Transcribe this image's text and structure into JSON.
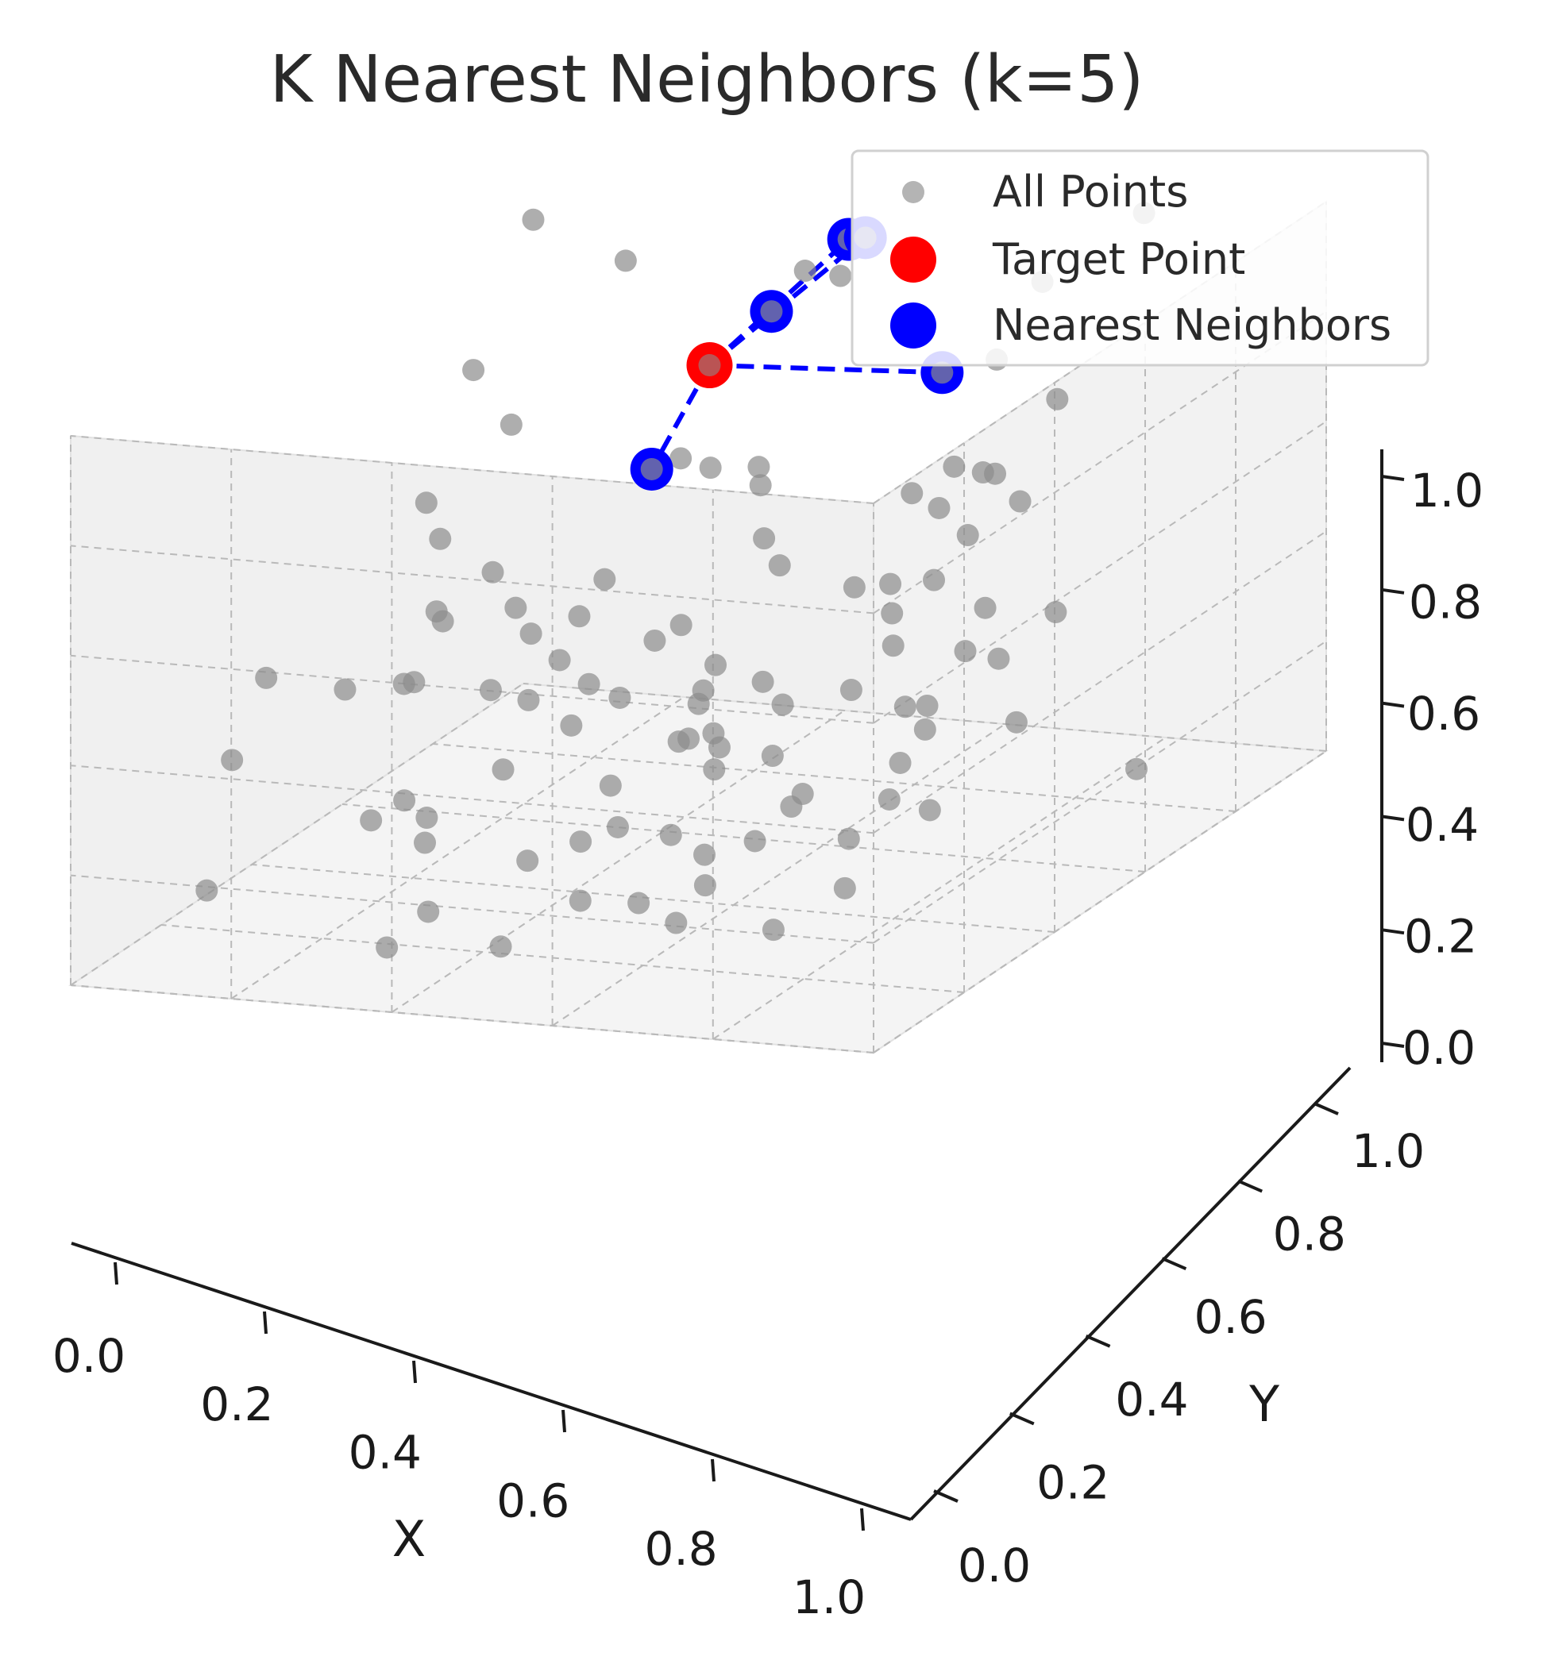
{
  "chart_data": {
    "type": "scatter",
    "projection": "3d",
    "title": "K Nearest Neighbors (k=5)",
    "xlabel": "X",
    "ylabel": "Y",
    "zlabel": "",
    "xlim": [
      0,
      1
    ],
    "ylim": [
      0,
      1
    ],
    "zlim": [
      0,
      1
    ],
    "xticks": [
      "0.0",
      "0.2",
      "0.4",
      "0.6",
      "0.8",
      "1.0"
    ],
    "yticks": [
      "0.0",
      "0.2",
      "0.4",
      "0.6",
      "0.8",
      "1.0"
    ],
    "zticks": [
      "0.0",
      "0.2",
      "0.4",
      "0.6",
      "0.8",
      "1.0"
    ],
    "grid": true,
    "legend": {
      "position": "top-right",
      "entries": [
        "All Points",
        "Target Point",
        "Nearest Neighbors"
      ]
    },
    "colors": {
      "all_points": "#8c8c8c",
      "target": "#ff0000",
      "neighbors": "#0000ff",
      "connector": "#0000ff"
    },
    "target": {
      "x": 0.52,
      "y": 0.56,
      "z": 0.88
    },
    "neighbors": [
      {
        "x": 0.42,
        "y": 0.69,
        "z": 1.05
      },
      {
        "x": 0.45,
        "y": 0.78,
        "z": 1.0
      },
      {
        "x": 0.36,
        "y": 0.79,
        "z": 0.76
      },
      {
        "x": 0.53,
        "y": 0.45,
        "z": 0.75
      },
      {
        "x": 0.55,
        "y": 0.75,
        "z": 0.87
      }
    ],
    "series": [
      {
        "name": "All Points",
        "points": [
          [
            0.07,
            0.53,
            0.89
          ],
          [
            0.17,
            0.57,
            0.72
          ],
          [
            0.22,
            0.46,
            0.35
          ],
          [
            0.28,
            0.54,
            0.41
          ],
          [
            0.1,
            0.38,
            0.51
          ],
          [
            0.3,
            0.71,
            0.64
          ],
          [
            0.34,
            0.64,
            0.46
          ],
          [
            0.43,
            0.84,
            0.93
          ],
          [
            0.21,
            0.97,
            0.97
          ],
          [
            0.23,
            0.68,
            0.86
          ],
          [
            0.54,
            0.29,
            0.37
          ],
          [
            0.63,
            0.16,
            0.77
          ],
          [
            0.48,
            0.7,
            0.98
          ],
          [
            0.19,
            0.71,
            0.99
          ],
          [
            0.34,
            0.38,
            0.29
          ],
          [
            0.47,
            0.14,
            0.58
          ],
          [
            0.75,
            0.22,
            0.21
          ],
          [
            0.47,
            0.58,
            0.69
          ],
          [
            0.66,
            0.38,
            0.52
          ],
          [
            0.56,
            0.92,
            0.84
          ],
          [
            0.67,
            0.37,
            0.23
          ],
          [
            0.75,
            0.53,
            0.76
          ],
          [
            0.86,
            0.56,
            0.39
          ],
          [
            0.61,
            0.84,
            0.4
          ],
          [
            0.75,
            0.97,
            0.44
          ],
          [
            0.24,
            0.55,
            0.11
          ],
          [
            0.17,
            0.42,
            0.38
          ],
          [
            0.39,
            0.51,
            0.12
          ],
          [
            0.35,
            0.42,
            0.36
          ],
          [
            0.44,
            0.35,
            0.32
          ],
          [
            0.29,
            0.83,
            0.11
          ],
          [
            0.64,
            0.71,
            0.31
          ],
          [
            0.51,
            0.66,
            0.25
          ],
          [
            0.32,
            0.97,
            0.23
          ],
          [
            0.18,
            0.9,
            0.0
          ],
          [
            0.16,
            0.56,
            0.39
          ],
          [
            0.64,
            0.12,
            0.53
          ],
          [
            0.33,
            0.73,
            0.55
          ],
          [
            0.42,
            0.18,
            0.26
          ],
          [
            0.54,
            0.51,
            0.05
          ],
          [
            0.59,
            0.66,
            0.2
          ],
          [
            0.72,
            0.29,
            0.18
          ],
          [
            0.92,
            0.29,
            0.41
          ],
          [
            0.85,
            0.96,
            0.81
          ],
          [
            0.14,
            0.49,
            0.77
          ],
          [
            0.54,
            0.31,
            0.04
          ],
          [
            0.68,
            0.78,
            0.57
          ],
          [
            0.25,
            0.69,
            0.4
          ],
          [
            0.57,
            0.43,
            0.18
          ],
          [
            0.3,
            0.27,
            0.2
          ],
          [
            0.49,
            0.52,
            0.36
          ],
          [
            0.37,
            0.77,
            0.12
          ],
          [
            0.5,
            0.13,
            0.63
          ],
          [
            0.49,
            0.35,
            0.02
          ],
          [
            0.79,
            0.56,
            0.47
          ],
          [
            0.85,
            0.34,
            0.37
          ],
          [
            0.79,
            0.41,
            0.06
          ],
          [
            0.69,
            0.24,
            0.04
          ],
          [
            0.64,
            0.06,
            0.08
          ],
          [
            0.51,
            0.14,
            0.21
          ],
          [
            0.58,
            0.62,
            0.16
          ],
          [
            0.52,
            0.88,
            0.3
          ],
          [
            0.44,
            0.44,
            0.26
          ],
          [
            0.37,
            0.22,
            0.07
          ],
          [
            0.47,
            0.01,
            0.13
          ],
          [
            0.33,
            0.62,
            0.08
          ],
          [
            0.63,
            0.91,
            0.31
          ],
          [
            0.68,
            0.83,
            0.12
          ],
          [
            0.18,
            0.27,
            0.49
          ],
          [
            0.53,
            0.29,
            0.57
          ],
          [
            0.3,
            0.18,
            0.38
          ],
          [
            0.81,
            0.4,
            0.14
          ],
          [
            0.78,
            0.9,
            0.16
          ],
          [
            0.76,
            0.36,
            0.71
          ],
          [
            0.52,
            0.16,
            0.49
          ],
          [
            0.3,
            0.16,
            0.18
          ],
          [
            0.25,
            0.38,
            0.06
          ],
          [
            0.26,
            0.52,
            0.21
          ],
          [
            0.41,
            0.08,
            0.29
          ],
          [
            0.37,
            0.98,
            0.42
          ],
          [
            0.63,
            0.08,
            0.55
          ],
          [
            0.33,
            0.67,
            0.61
          ],
          [
            0.87,
            0.07,
            0.15
          ],
          [
            0.18,
            0.36,
            0.58
          ],
          [
            0.77,
            0.52,
            0.28
          ],
          [
            0.62,
            0.85,
            0.49
          ],
          [
            0.7,
            0.29,
            0.54
          ],
          [
            0.28,
            0.34,
            0.25
          ],
          [
            0.94,
            0.25,
            0.28
          ],
          [
            0.6,
            0.47,
            0.53
          ],
          [
            0.26,
            0.24,
            0.06
          ],
          [
            0.47,
            0.46,
            0.05
          ],
          [
            0.39,
            0.9,
            0.4
          ],
          [
            0.47,
            0.48,
            0.26
          ],
          [
            0.58,
            0.4,
            0.38
          ],
          [
            0.66,
            0.61,
            0.23
          ],
          [
            0.2,
            0.3,
            0.2
          ],
          [
            0.92,
            0.88,
            0.92
          ],
          [
            0.28,
            0.63,
            0.48
          ],
          [
            0.91,
            0.73,
            0.73
          ]
        ]
      }
    ]
  }
}
